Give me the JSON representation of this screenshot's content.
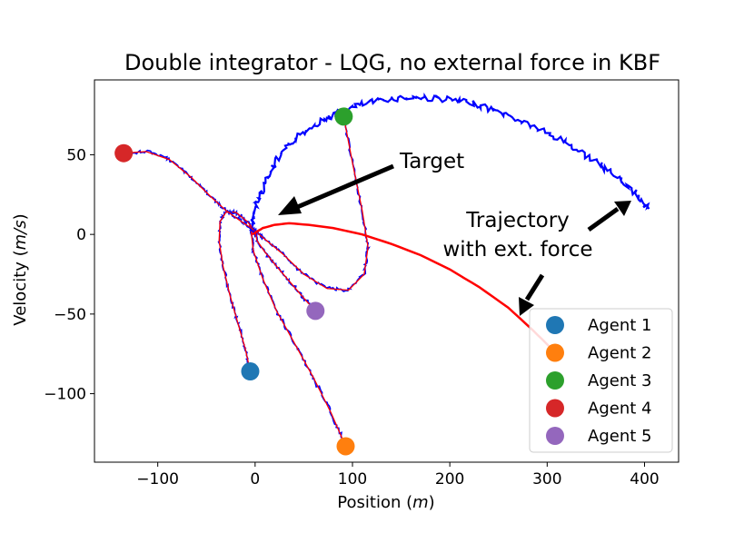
{
  "chart_data": {
    "type": "line",
    "title": "Double integrator - LQG, no external force in KBF",
    "xlabel_prefix": "Position (",
    "xlabel_unit": "m",
    "xlabel_suffix": ")",
    "ylabel_prefix": "Velocity (",
    "ylabel_unit": "m/s",
    "ylabel_suffix": ")",
    "xlim": [
      -165,
      435
    ],
    "ylim": [
      -143,
      97
    ],
    "xticks": [
      -100,
      0,
      100,
      200,
      300,
      400
    ],
    "xtick_labels": [
      "−100",
      "0",
      "100",
      "200",
      "300",
      "400"
    ],
    "yticks": [
      50,
      0,
      -50,
      -100
    ],
    "ytick_labels": [
      "50",
      "0",
      "−50",
      "−100"
    ],
    "annotations": {
      "target": "Target",
      "trajectory_line1": "Trajectory",
      "trajectory_line2": "with ext. force"
    },
    "colors": {
      "estimate": "#0000ff",
      "true": "#ff0000"
    },
    "agents": [
      {
        "name": "Agent 1",
        "color": "#1f77b4",
        "start": [
          -5,
          -86
        ],
        "path": [
          [
            -5,
            -86
          ],
          [
            -10,
            -72
          ],
          [
            -18,
            -55
          ],
          [
            -26,
            -38
          ],
          [
            -33,
            -20
          ],
          [
            -37,
            -4
          ],
          [
            -36,
            8
          ],
          [
            -30,
            14
          ],
          [
            -20,
            14
          ],
          [
            -8,
            8
          ],
          [
            0,
            2
          ]
        ]
      },
      {
        "name": "Agent 2",
        "color": "#ff7f0e",
        "start": [
          93,
          -133
        ],
        "path": [
          [
            93,
            -133
          ],
          [
            78,
            -112
          ],
          [
            60,
            -90
          ],
          [
            42,
            -70
          ],
          [
            22,
            -48
          ],
          [
            8,
            -28
          ],
          [
            -2,
            -10
          ],
          [
            -4,
            2
          ],
          [
            0,
            2
          ]
        ]
      },
      {
        "name": "Agent 3",
        "color": "#2ca02c",
        "start": [
          91,
          74
        ],
        "path": [
          [
            91,
            74
          ],
          [
            100,
            45
          ],
          [
            110,
            15
          ],
          [
            116,
            -8
          ],
          [
            112,
            -25
          ],
          [
            96,
            -35
          ],
          [
            74,
            -34
          ],
          [
            50,
            -25
          ],
          [
            28,
            -12
          ],
          [
            10,
            -3
          ],
          [
            0,
            2
          ]
        ]
      },
      {
        "name": "Agent 4",
        "color": "#d62728",
        "start": [
          -135,
          51
        ],
        "path": [
          [
            -135,
            51
          ],
          [
            -112,
            52
          ],
          [
            -88,
            47
          ],
          [
            -66,
            36
          ],
          [
            -46,
            24
          ],
          [
            -30,
            15
          ],
          [
            -14,
            8
          ],
          [
            -4,
            4
          ],
          [
            0,
            2
          ]
        ]
      },
      {
        "name": "Agent 5",
        "color": "#9467bd",
        "start": [
          62,
          -48
        ],
        "path": [
          [
            62,
            -48
          ],
          [
            50,
            -40
          ],
          [
            36,
            -30
          ],
          [
            22,
            -20
          ],
          [
            10,
            -11
          ],
          [
            2,
            -4
          ],
          [
            0,
            2
          ]
        ]
      }
    ],
    "estimate_arc": [
      [
        -3,
        2
      ],
      [
        -2,
        10
      ],
      [
        2,
        20
      ],
      [
        10,
        32
      ],
      [
        22,
        46
      ],
      [
        38,
        58
      ],
      [
        58,
        68
      ],
      [
        80,
        75
      ],
      [
        106,
        81
      ],
      [
        135,
        85
      ],
      [
        165,
        86
      ],
      [
        195,
        85
      ],
      [
        225,
        82
      ],
      [
        255,
        76
      ],
      [
        285,
        68
      ],
      [
        315,
        59
      ],
      [
        345,
        48
      ],
      [
        370,
        37
      ],
      [
        390,
        26
      ],
      [
        405,
        15
      ]
    ],
    "true_arc": [
      [
        -3,
        0
      ],
      [
        8,
        4
      ],
      [
        20,
        6
      ],
      [
        35,
        7
      ],
      [
        55,
        6
      ],
      [
        80,
        4
      ],
      [
        110,
        0
      ],
      [
        140,
        -6
      ],
      [
        170,
        -13
      ],
      [
        200,
        -22
      ],
      [
        230,
        -33
      ],
      [
        260,
        -46
      ],
      [
        285,
        -60
      ],
      [
        305,
        -72
      ]
    ]
  },
  "legend": [
    {
      "label": "Agent 1",
      "color": "#1f77b4"
    },
    {
      "label": "Agent 2",
      "color": "#ff7f0e"
    },
    {
      "label": "Agent 3",
      "color": "#2ca02c"
    },
    {
      "label": "Agent 4",
      "color": "#d62728"
    },
    {
      "label": "Agent 5",
      "color": "#9467bd"
    }
  ]
}
